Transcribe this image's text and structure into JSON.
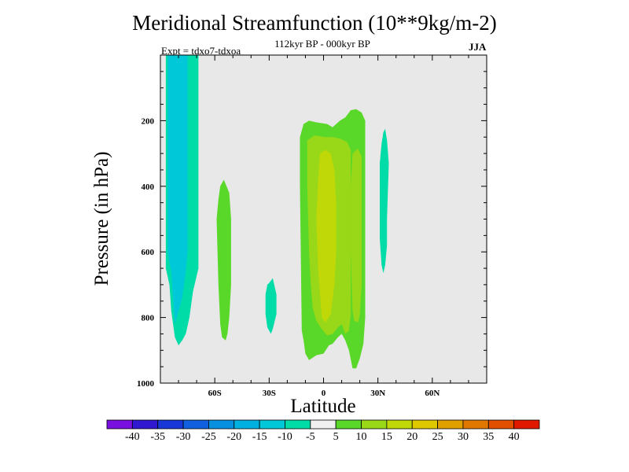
{
  "chart_data": {
    "type": "contour",
    "title": "Meridional Streamfunction (10**9kg/m-2)",
    "subtitle": "112kyr BP - 000kyr BP",
    "left_string": "Expt = tdxo7-tdxoa",
    "right_string": "JJA",
    "xlabel": "Latitude",
    "ylabel": "Pressure (in hPa)",
    "xlim": [
      -90,
      90
    ],
    "ylim": [
      1000,
      0
    ],
    "x_ticks": [
      -60,
      -30,
      0,
      30,
      60
    ],
    "x_tick_labels": [
      "60S",
      "30S",
      "0",
      "30N",
      "60N"
    ],
    "y_ticks": [
      200,
      400,
      600,
      800,
      1000
    ],
    "y_tick_labels": [
      "200",
      "400",
      "600",
      "800",
      "1000"
    ],
    "background_color": "#e8e8e8",
    "colorbar": {
      "labels": [
        "-40",
        "-35",
        "-30",
        "-25",
        "-20",
        "-15",
        "-10",
        "-5",
        "5",
        "10",
        "15",
        "20",
        "25",
        "30",
        "35",
        "40"
      ],
      "colors": [
        "#7a10e0",
        "#3018d0",
        "#1838d8",
        "#1060e0",
        "#0890e0",
        "#00b0e0",
        "#00c8d8",
        "#00dca8",
        "#f0f0f0",
        "#5ad82a",
        "#98d818",
        "#c0d808",
        "#e0c800",
        "#e0a000",
        "#e07800",
        "#e05000",
        "#e01800"
      ]
    },
    "regions": [
      {
        "name": "sh-polar-negative",
        "color": "#00dca8",
        "points": [
          [
            -87,
            0
          ],
          [
            -69,
            0
          ],
          [
            -69,
            250
          ],
          [
            -69,
            650
          ],
          [
            -72,
            720
          ],
          [
            -74,
            800
          ],
          [
            -76,
            850
          ],
          [
            -78,
            870
          ],
          [
            -80,
            885
          ],
          [
            -82,
            860
          ],
          [
            -84,
            780
          ],
          [
            -85,
            700
          ],
          [
            -87,
            650
          ]
        ]
      },
      {
        "name": "sh-polar-core",
        "color": "#00c8d8",
        "points": [
          [
            -86,
            0
          ],
          [
            -75,
            0
          ],
          [
            -75,
            300
          ],
          [
            -75,
            600
          ],
          [
            -76,
            660
          ],
          [
            -77,
            700
          ],
          [
            -78,
            740
          ],
          [
            -80,
            780
          ],
          [
            -82,
            820
          ],
          [
            -83,
            740
          ],
          [
            -84,
            660
          ],
          [
            -86,
            600
          ]
        ]
      },
      {
        "name": "sh-midlat-positive",
        "color": "#5ad82a",
        "points": [
          [
            -57,
            400
          ],
          [
            -55,
            380
          ],
          [
            -52,
            420
          ],
          [
            -51,
            500
          ],
          [
            -51,
            700
          ],
          [
            -52,
            800
          ],
          [
            -53,
            850
          ],
          [
            -54,
            870
          ],
          [
            -56,
            860
          ],
          [
            -57,
            820
          ],
          [
            -58,
            700
          ],
          [
            -59,
            500
          ],
          [
            -58,
            440
          ]
        ]
      },
      {
        "name": "sh-subtrop-negative",
        "color": "#00dca8",
        "points": [
          [
            -30,
            695
          ],
          [
            -28,
            680
          ],
          [
            -26,
            730
          ],
          [
            -26,
            790
          ],
          [
            -28,
            835
          ],
          [
            -29,
            850
          ],
          [
            -31,
            830
          ],
          [
            -32,
            790
          ],
          [
            -32,
            730
          ],
          [
            -31,
            700
          ]
        ]
      },
      {
        "name": "tropical-positive-outer",
        "color": "#5ad82a",
        "points": [
          [
            -11,
            210
          ],
          [
            -8,
            200
          ],
          [
            -4,
            205
          ],
          [
            2,
            210
          ],
          [
            5,
            220
          ],
          [
            9,
            200
          ],
          [
            12,
            190
          ],
          [
            15,
            168
          ],
          [
            18,
            165
          ],
          [
            21,
            175
          ],
          [
            23,
            200
          ],
          [
            23,
            800
          ],
          [
            22,
            880
          ],
          [
            20,
            925
          ],
          [
            18,
            955
          ],
          [
            16,
            955
          ],
          [
            14,
            900
          ],
          [
            12,
            870
          ],
          [
            10,
            850
          ],
          [
            8,
            860
          ],
          [
            5,
            880
          ],
          [
            3,
            885
          ],
          [
            0,
            910
          ],
          [
            -4,
            915
          ],
          [
            -8,
            930
          ],
          [
            -10,
            910
          ],
          [
            -11,
            870
          ],
          [
            -12,
            840
          ],
          [
            -13,
            400
          ],
          [
            -13,
            250
          ]
        ]
      },
      {
        "name": "tropical-positive-mid",
        "color": "#98d818",
        "points": [
          [
            -9,
            260
          ],
          [
            -5,
            245
          ],
          [
            1,
            250
          ],
          [
            5,
            250
          ],
          [
            9,
            255
          ],
          [
            13,
            265
          ],
          [
            15,
            290
          ],
          [
            15,
            450
          ],
          [
            15,
            600
          ],
          [
            15,
            790
          ],
          [
            14,
            840
          ],
          [
            12,
            850
          ],
          [
            10,
            820
          ],
          [
            8,
            830
          ],
          [
            5,
            850
          ],
          [
            2,
            855
          ],
          [
            -1,
            835
          ],
          [
            -4,
            810
          ],
          [
            -6,
            770
          ],
          [
            -7,
            700
          ],
          [
            -8,
            600
          ],
          [
            -9,
            400
          ]
        ]
      },
      {
        "name": "tropical-positive-north-band",
        "color": "#98d818",
        "points": [
          [
            16,
            300
          ],
          [
            19,
            285
          ],
          [
            21,
            310
          ],
          [
            21,
            500
          ],
          [
            21,
            700
          ],
          [
            20,
            790
          ],
          [
            19,
            815
          ],
          [
            17,
            810
          ],
          [
            16,
            780
          ],
          [
            15,
            600
          ],
          [
            15,
            400
          ]
        ]
      },
      {
        "name": "tropical-positive-core",
        "color": "#c0d808",
        "points": [
          [
            -2,
            300
          ],
          [
            1,
            290
          ],
          [
            4,
            300
          ],
          [
            6,
            350
          ],
          [
            7,
            450
          ],
          [
            7,
            600
          ],
          [
            6,
            700
          ],
          [
            4,
            790
          ],
          [
            1,
            815
          ],
          [
            -1,
            800
          ],
          [
            -3,
            650
          ],
          [
            -4,
            500
          ],
          [
            -3,
            380
          ]
        ]
      },
      {
        "name": "nh-subtrop-negative",
        "color": "#00dca8",
        "points": [
          [
            33,
            235
          ],
          [
            34,
            225
          ],
          [
            35,
            260
          ],
          [
            36,
            330
          ],
          [
            35,
            500
          ],
          [
            35,
            580
          ],
          [
            34,
            640
          ],
          [
            33,
            665
          ],
          [
            32,
            640
          ],
          [
            31,
            560
          ],
          [
            31,
            400
          ],
          [
            31,
            330
          ],
          [
            32,
            270
          ]
        ]
      }
    ]
  }
}
